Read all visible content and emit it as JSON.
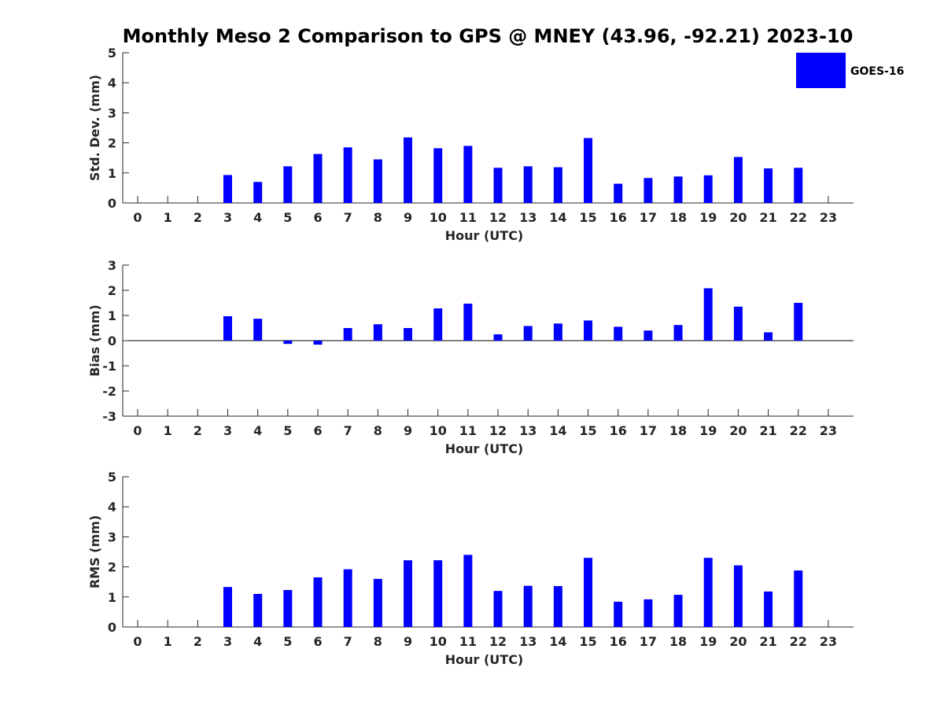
{
  "title": "Monthly Meso 2 Comparison to GPS @ MNEY (43.96, -92.21) 2023-10",
  "colors": {
    "bar": "#0000ff",
    "axis": "#262626"
  },
  "legend": {
    "label": "GOES-16",
    "placement": "top-right"
  },
  "chart_data": [
    {
      "type": "bar",
      "ylabel": "Std. Dev. (mm)",
      "xlabel": "Hour (UTC)",
      "ylim": [
        0,
        5
      ],
      "yticks": [
        "0",
        "1",
        "2",
        "3",
        "4",
        "5"
      ],
      "categories": [
        "0",
        "1",
        "2",
        "3",
        "4",
        "5",
        "6",
        "7",
        "8",
        "9",
        "10",
        "11",
        "12",
        "13",
        "14",
        "15",
        "16",
        "17",
        "18",
        "19",
        "20",
        "21",
        "22",
        "23"
      ],
      "series": [
        {
          "name": "GOES-16",
          "values": [
            null,
            null,
            null,
            0.93,
            0.7,
            1.22,
            1.63,
            1.85,
            1.45,
            2.18,
            1.82,
            1.9,
            1.17,
            1.22,
            1.19,
            2.16,
            0.64,
            0.83,
            0.88,
            0.92,
            1.53,
            1.15,
            1.17,
            null
          ]
        }
      ],
      "grid": false
    },
    {
      "type": "bar",
      "ylabel": "Bias (mm)",
      "xlabel": "Hour (UTC)",
      "ylim": [
        -3,
        3
      ],
      "yticks": [
        "-3",
        "-2",
        "-1",
        "0",
        "1",
        "2",
        "3"
      ],
      "categories": [
        "0",
        "1",
        "2",
        "3",
        "4",
        "5",
        "6",
        "7",
        "8",
        "9",
        "10",
        "11",
        "12",
        "13",
        "14",
        "15",
        "16",
        "17",
        "18",
        "19",
        "20",
        "21",
        "22",
        "23"
      ],
      "series": [
        {
          "name": "GOES-16",
          "values": [
            null,
            null,
            null,
            0.97,
            0.87,
            -0.13,
            -0.16,
            0.5,
            0.65,
            0.5,
            1.28,
            1.47,
            0.25,
            0.58,
            0.68,
            0.8,
            0.55,
            0.4,
            0.62,
            2.08,
            1.35,
            0.33,
            1.5,
            null
          ]
        }
      ],
      "grid": false
    },
    {
      "type": "bar",
      "ylabel": "RMS (mm)",
      "xlabel": "Hour (UTC)",
      "ylim": [
        0,
        5
      ],
      "yticks": [
        "0",
        "1",
        "2",
        "3",
        "4",
        "5"
      ],
      "categories": [
        "0",
        "1",
        "2",
        "3",
        "4",
        "5",
        "6",
        "7",
        "8",
        "9",
        "10",
        "11",
        "12",
        "13",
        "14",
        "15",
        "16",
        "17",
        "18",
        "19",
        "20",
        "21",
        "22",
        "23"
      ],
      "series": [
        {
          "name": "GOES-16",
          "values": [
            null,
            null,
            null,
            1.33,
            1.1,
            1.23,
            1.65,
            1.92,
            1.6,
            2.22,
            2.22,
            2.4,
            1.2,
            1.37,
            1.36,
            2.3,
            0.84,
            0.92,
            1.07,
            2.3,
            2.05,
            1.18,
            1.88,
            null
          ]
        }
      ],
      "grid": false
    }
  ]
}
